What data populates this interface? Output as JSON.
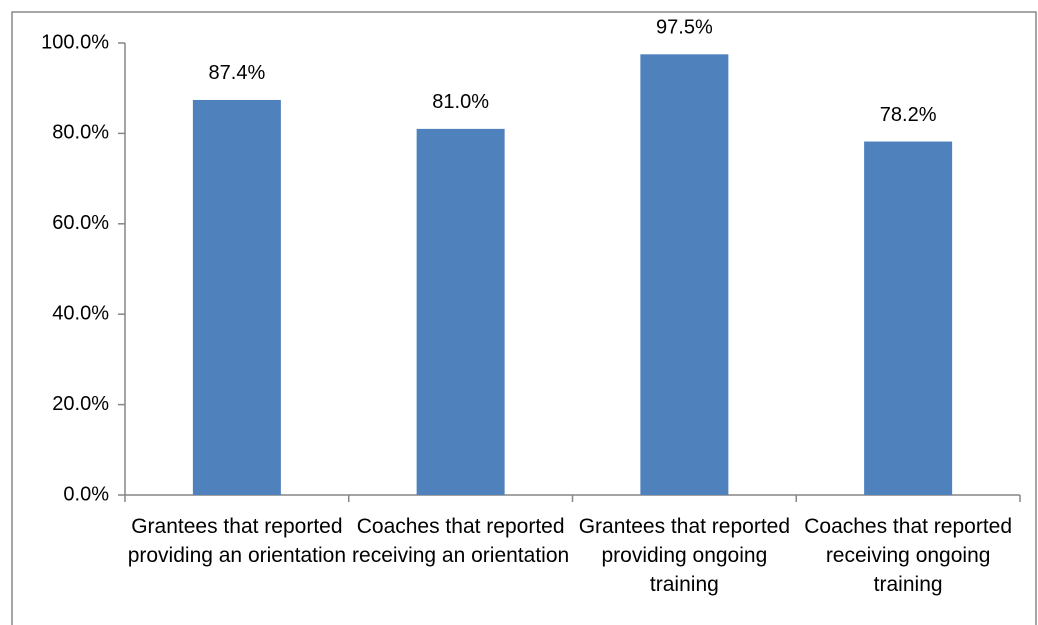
{
  "chart_data": {
    "type": "bar",
    "categories": [
      "Grantees that reported providing an orientation",
      "Coaches that reported receiving an orientation",
      "Grantees that reported providing ongoing training",
      "Coaches that reported receiving ongoing training"
    ],
    "values": [
      87.4,
      81.0,
      97.5,
      78.2
    ],
    "value_labels": [
      "87.4%",
      "81.0%",
      "97.5%",
      "78.2%"
    ],
    "color": "#4f81bd",
    "ylim": [
      0,
      100
    ],
    "yticks": [
      {
        "value": 0,
        "label": "0.0%"
      },
      {
        "value": 20,
        "label": "20.0%"
      },
      {
        "value": 40,
        "label": "40.0%"
      },
      {
        "value": 60,
        "label": "60.0%"
      },
      {
        "value": 80,
        "label": "80.0%"
      },
      {
        "value": 100,
        "label": "100.0%"
      }
    ],
    "grid": false
  }
}
